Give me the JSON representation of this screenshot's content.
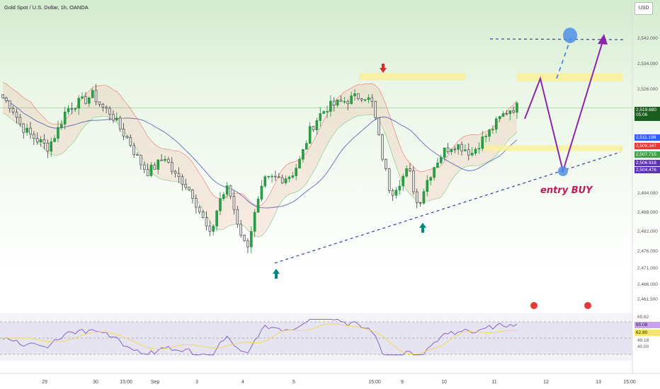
{
  "header": {
    "title": "Gold Spot / U.S. Dollar, 1h, OANDA",
    "currency_button": "USD"
  },
  "annotation": {
    "entry_label": "entry BUY"
  },
  "price_axis": {
    "ticks": [
      "2,542.000",
      "2,534.000",
      "2,526.000",
      "2,494.000",
      "2,488.000",
      "2,482.000",
      "2,476.000",
      "2,471.000",
      "2,466.000",
      "2,461.500"
    ],
    "last_price": "2,519.680",
    "countdown": "05:06",
    "tags": [
      "2,511.198",
      "2,508.347",
      "2,507.715",
      "2,506.916",
      "2,504.476"
    ],
    "tag_colors": [
      "#2962ff",
      "#e53935",
      "#43a047",
      "#5e35b1",
      "#5e35b1"
    ]
  },
  "time_axis": {
    "labels": [
      "29",
      "30",
      "15:00",
      "Sep",
      "3",
      "4",
      "5",
      "15:00",
      "9",
      "10",
      "11",
      "12",
      "13",
      "15:00"
    ]
  },
  "rsi": {
    "ticks": [
      "65.62",
      "65.08",
      "62.80",
      "49.18",
      "40.00"
    ],
    "tag_colors": [
      "#ffffff",
      "#c8a2f0",
      "#f5e663",
      "#ffffff",
      "#ffffff"
    ]
  },
  "chart_data": {
    "type": "candlestick",
    "title": "Gold Spot / U.S. Dollar, 1h, OANDA",
    "ylim": [
      2461.5,
      2546
    ],
    "x_labels": [
      "29",
      "30",
      "15:00",
      "Sep",
      "3",
      "4",
      "5",
      "15:00",
      "9",
      "10",
      "11",
      "12",
      "13",
      "15:00"
    ],
    "close_path": [
      2523,
      2520,
      2514,
      2511,
      2509,
      2507,
      2512,
      2519,
      2521,
      2522,
      2524,
      2520,
      2518,
      2513,
      2509,
      2503,
      2499,
      2501,
      2504,
      2498,
      2496,
      2492,
      2485,
      2478,
      2490,
      2494,
      2483,
      2474,
      2486,
      2496,
      2497,
      2497,
      2498,
      2503,
      2512,
      2517,
      2520,
      2521,
      2522,
      2523,
      2524,
      2521,
      2505,
      2492,
      2496,
      2500,
      2488,
      2496,
      2502,
      2506,
      2508,
      2507,
      2505,
      2509,
      2512,
      2516,
      2519,
      2520
    ],
    "key_levels": {
      "resistance_zone": 2529,
      "support_zone": 2506,
      "target": 2542
    },
    "projection": [
      2521,
      2528,
      2506,
      2542
    ]
  }
}
